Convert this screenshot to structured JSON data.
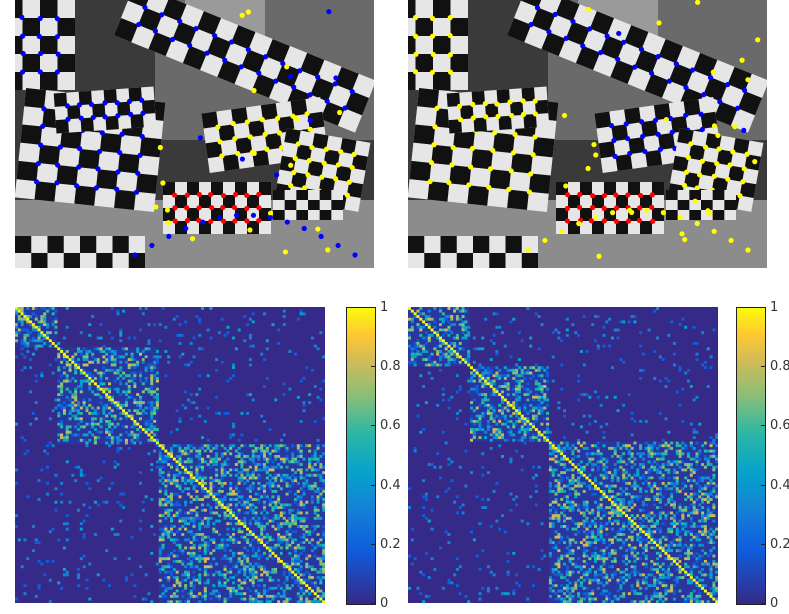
{
  "chart_data": [
    {
      "type": "scatter",
      "subject": "clustered keypoints on checkerboards in grayscale photo",
      "series": [
        {
          "color": "#0000ff"
        },
        {
          "color": "#ffff00"
        },
        {
          "color": "#ff0000"
        }
      ]
    },
    {
      "type": "scatter",
      "subject": "clustered keypoints on checkerboards in grayscale photo",
      "series": [
        {
          "color": "#0000ff"
        },
        {
          "color": "#ffff00"
        },
        {
          "color": "#ff0000"
        }
      ]
    },
    {
      "type": "heatmap",
      "colormap": "parula",
      "zlim": [
        0,
        1
      ],
      "colorbar_ticks": [
        "0",
        "0.2",
        "0.4",
        "0.6",
        "0.8",
        "1"
      ],
      "blocks": [
        [
          0,
          0.14
        ],
        [
          0.14,
          0.46
        ],
        [
          0.46,
          1
        ]
      ]
    },
    {
      "type": "heatmap",
      "colormap": "parula",
      "zlim": [
        0,
        1
      ],
      "colorbar_ticks": [
        "0",
        "0.2",
        "0.4",
        "0.6",
        "0.8",
        "1"
      ],
      "blocks": [
        [
          0,
          0.2
        ],
        [
          0.2,
          0.45
        ],
        [
          0.45,
          1
        ]
      ]
    }
  ]
}
